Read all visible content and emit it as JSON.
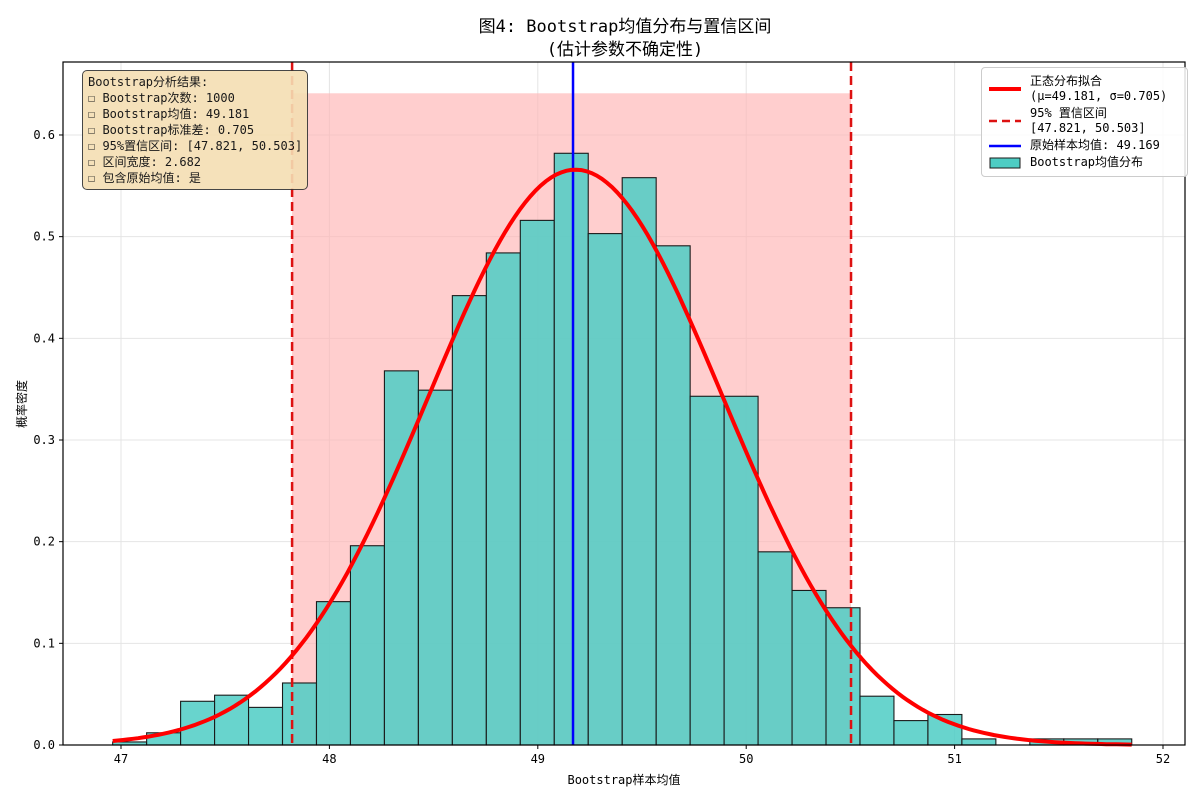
{
  "chart_data": {
    "type": "bar",
    "title": "图4: Bootstrap均值分布与置信区间",
    "subtitle": "(估计参数不确定性)",
    "xlabel": "Bootstrap样本均值",
    "ylabel": "概率密度",
    "xlim": [
      46.75,
      52.1
    ],
    "ylim": [
      0,
      0.672
    ],
    "xticks": [
      47,
      48,
      49,
      50,
      51,
      52
    ],
    "yticks": [
      "0.0",
      "0.1",
      "0.2",
      "0.3",
      "0.4",
      "0.5",
      "0.6"
    ],
    "grid": true,
    "bin_start": 46.96,
    "bin_width": 0.163,
    "hist_values": [
      0.003,
      0.012,
      0.043,
      0.049,
      0.037,
      0.061,
      0.141,
      0.196,
      0.368,
      0.349,
      0.442,
      0.484,
      0.516,
      0.582,
      0.503,
      0.558,
      0.491,
      0.343,
      0.343,
      0.19,
      0.152,
      0.135,
      0.048,
      0.024,
      0.03,
      0.006,
      0.0,
      0.006,
      0.006,
      0.006
    ],
    "normal_fit": {
      "mu": 49.181,
      "sigma": 0.705,
      "x_range": [
        46.96,
        51.85
      ]
    },
    "ci": {
      "lower": 47.821,
      "upper": 50.503,
      "shade_top": 0.641
    },
    "original_mean": 49.169,
    "colors": {
      "hist": "#4ecdc4",
      "hist_edge": "#1a1a1a",
      "normal": "#ff0000",
      "ci_line": "#dd1111",
      "ci_fill": "#ffb3b3",
      "orig_mean": "#0000ff",
      "grid": "#e4e4e4"
    },
    "legend_position": "upper right"
  },
  "info_box": {
    "lines": [
      "Bootstrap分析结果:",
      "☐ Bootstrap次数: 1000",
      "☐ Bootstrap均值: 49.181",
      "☐ Bootstrap标准差: 0.705",
      "☐ 95%置信区间: [47.821, 50.503]",
      "☐ 区间宽度: 2.682",
      "☐ 包含原始均值: 是"
    ]
  },
  "legend": {
    "normal": "正态分布拟合\n(μ=49.181, σ=0.705)",
    "ci": "95% 置信区间\n[47.821, 50.503]",
    "orig_mean": "原始样本均值: 49.169",
    "hist": "Bootstrap均值分布"
  }
}
